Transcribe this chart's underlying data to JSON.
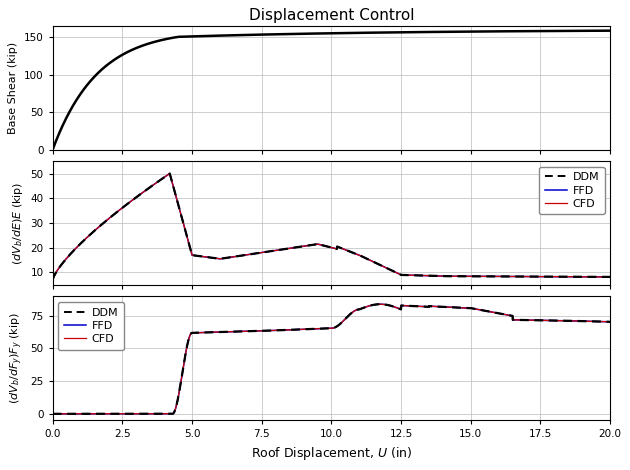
{
  "title": "Displacement Control",
  "xlabel": "Roof Displacement, $U$ (in)",
  "ylabel1": "Base Shear (kip)",
  "ylabel2": "$(dV_b/dE)E$ (kip)",
  "ylabel3": "$(dV_b/dF_y)F_y$ (kip)",
  "xlim": [
    0.0,
    20.0
  ],
  "ylim1": [
    0,
    165
  ],
  "ylim2": [
    5,
    55
  ],
  "ylim3": [
    -5,
    90
  ],
  "xticks": [
    0.0,
    2.5,
    5.0,
    7.5,
    10.0,
    12.5,
    15.0,
    17.5,
    20.0
  ],
  "yticks1": [
    0,
    50,
    100,
    150
  ],
  "yticks2": [
    10,
    20,
    30,
    40,
    50
  ],
  "yticks3": [
    0,
    25,
    50,
    75
  ],
  "line_color_ddm": "#000000",
  "line_color_ffd": "#0000cc",
  "line_color_cfd": "#cc0000",
  "background_color": "#ffffff",
  "grid_color": "#bbbbbb"
}
